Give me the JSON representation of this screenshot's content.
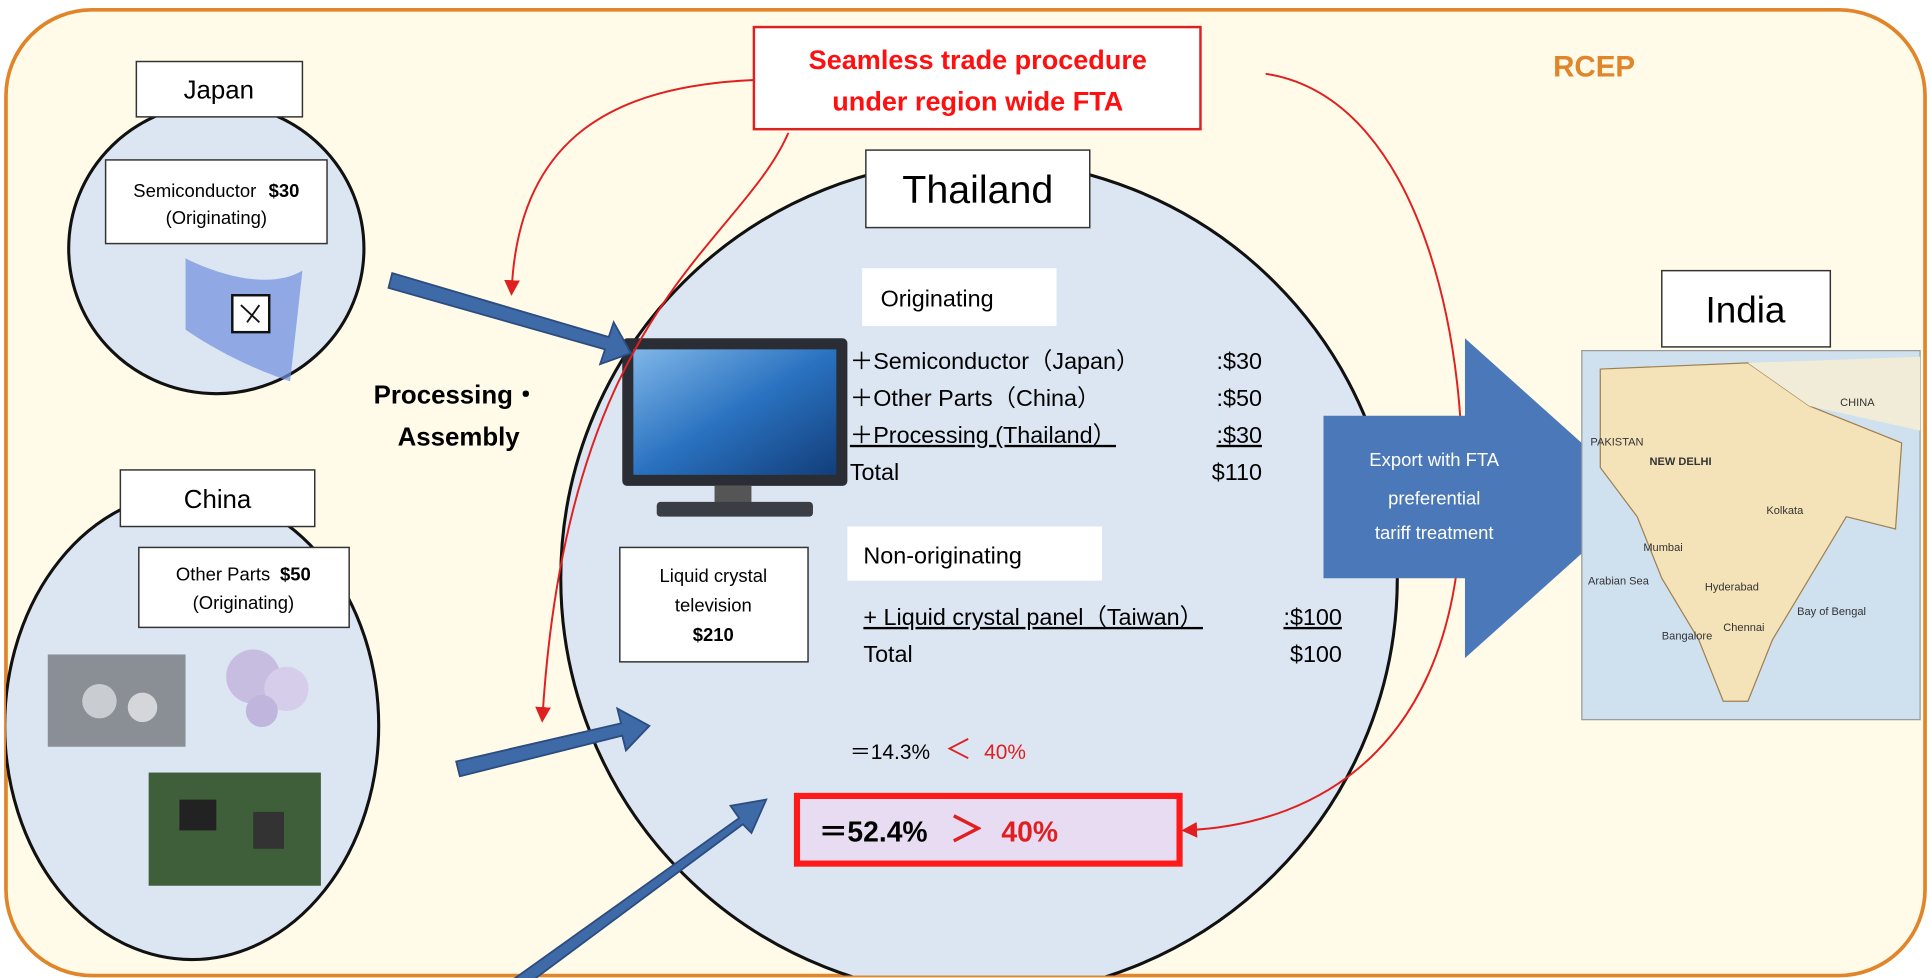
{
  "region": "RCEP",
  "banner": {
    "lines": [
      "Seamless trade procedure",
      "under region wide FTA"
    ]
  },
  "japan": {
    "label": "Japan",
    "item": "Semiconductor",
    "price": "$30",
    "status": "(Originating)"
  },
  "china": {
    "label": "China",
    "item": "Other Parts",
    "price": "$50",
    "status": "(Originating)"
  },
  "processing": {
    "lines": [
      "Processing・",
      "Assembly"
    ]
  },
  "thailand": {
    "label": "Thailand",
    "originating": {
      "header": "Originating",
      "rows": [
        [
          "＋Semiconductor（Japan）",
          ":$30"
        ],
        [
          "＋Other Parts（China）",
          ":$50"
        ],
        [
          "＋Processing (Thailand）",
          ":$30"
        ],
        [
          "Total",
          "$110"
        ]
      ]
    },
    "non_originating": {
      "header": "Non-originating",
      "rows": [
        [
          "+ Liquid crystal panel（Taiwan）",
          ":$100"
        ],
        [
          "Total",
          "$100"
        ]
      ]
    },
    "product": {
      "lines": [
        "Liquid crystal",
        "television"
      ],
      "price": "$210"
    },
    "ratio_fail": [
      "＝14.3%",
      "＜",
      "40%"
    ],
    "ratio_pass": [
      "＝52.4%",
      "＞",
      "40%"
    ]
  },
  "export": {
    "lines": [
      "Export with FTA",
      "preferential",
      "tariff treatment"
    ]
  },
  "india": {
    "label": "India",
    "map_labels": [
      "CHINA",
      "NEW DELHI",
      "Mumbai",
      "Kolkata",
      "Hyderabad",
      "Bangalore",
      "Chennai",
      "Arabian Sea",
      "Bay of Bengal",
      "PAKISTAN"
    ]
  }
}
